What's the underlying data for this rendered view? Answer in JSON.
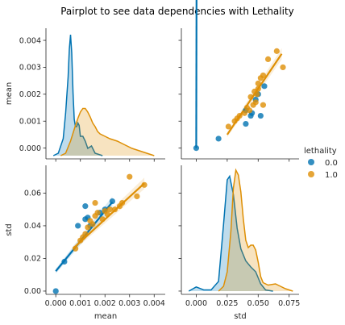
{
  "chart_data": {
    "type": "scatter",
    "title": "Pairplot to see data dependencies with Lethality",
    "variables": [
      "mean",
      "std"
    ],
    "hue": {
      "title": "lethality",
      "levels": [
        {
          "name": "0.0",
          "color": "#0173b2"
        },
        {
          "name": "1.0",
          "color": "#de8f05"
        }
      ]
    },
    "axes": {
      "mean": {
        "range": [
          -0.0004,
          0.00445
        ],
        "ticks": [
          0.0,
          0.001,
          0.002,
          0.003,
          0.004
        ],
        "tick_labels": [
          "0.000",
          "0.001",
          "0.002",
          "0.003",
          "0.004"
        ]
      },
      "mean_x": {
        "ticks": [
          0.0,
          0.001,
          0.002,
          0.003,
          0.004
        ],
        "tick_labels": [
          "0.000",
          "0.001",
          "0.002",
          "0.003",
          "0.004"
        ]
      },
      "std": {
        "range": [
          -0.002,
          0.077
        ],
        "ticks": [
          0.0,
          0.02,
          0.04,
          0.06
        ],
        "tick_labels": [
          "0.00",
          "0.02",
          "0.04",
          "0.06"
        ]
      },
      "std_x": {
        "range": [
          -0.012,
          0.083
        ],
        "ticks": [
          0.0,
          0.025,
          0.05,
          0.075
        ],
        "tick_labels": [
          "0.000",
          "0.025",
          "0.050",
          "0.075"
        ]
      }
    },
    "scatter_points": {
      "0.0": [
        {
          "mean": 0.0,
          "std": 0.0
        },
        {
          "mean": 0.00035,
          "std": 0.018
        },
        {
          "mean": 0.0009,
          "std": 0.04
        },
        {
          "mean": 0.0012,
          "std": 0.044
        },
        {
          "mean": 0.0012,
          "std": 0.052
        },
        {
          "mean": 0.0014,
          "std": 0.04
        },
        {
          "mean": 0.0018,
          "std": 0.048
        },
        {
          "mean": 0.002,
          "std": 0.05
        },
        {
          "mean": 0.0023,
          "std": 0.055
        },
        {
          "mean": 0.0013,
          "std": 0.045
        }
      ],
      "1.0": [
        {
          "mean": 0.0008,
          "std": 0.026
        },
        {
          "mean": 0.001,
          "std": 0.031
        },
        {
          "mean": 0.0012,
          "std": 0.035
        },
        {
          "mean": 0.0013,
          "std": 0.039
        },
        {
          "mean": 0.0014,
          "std": 0.043
        },
        {
          "mean": 0.0015,
          "std": 0.041
        },
        {
          "mean": 0.0016,
          "std": 0.046
        },
        {
          "mean": 0.0017,
          "std": 0.048
        },
        {
          "mean": 0.0019,
          "std": 0.044
        },
        {
          "mean": 0.002,
          "std": 0.049
        },
        {
          "mean": 0.0021,
          "std": 0.047
        },
        {
          "mean": 0.0022,
          "std": 0.05
        },
        {
          "mean": 0.0024,
          "std": 0.05
        },
        {
          "mean": 0.0026,
          "std": 0.052
        },
        {
          "mean": 0.0027,
          "std": 0.054
        },
        {
          "mean": 0.003,
          "std": 0.07
        },
        {
          "mean": 0.0033,
          "std": 0.058
        },
        {
          "mean": 0.0036,
          "std": 0.065
        },
        {
          "mean": 0.0016,
          "std": 0.054
        },
        {
          "mean": 0.0011,
          "std": 0.033
        }
      ]
    },
    "regression": {
      "0.0": {
        "mean_vs_std": {
          "x": [
            0.0,
            0.0023
          ],
          "y": [
            0.0,
            0.0535
          ]
        },
        "std_vs_mean": {
          "x": [
            0.0,
            0.0023
          ],
          "y": [
            0.0122,
            0.0545
          ]
        }
      },
      "1.0": {
        "mean_vs_std": {
          "x": [
            0.025,
            0.069
          ],
          "y": [
            0.0005,
            0.0035
          ]
        },
        "std_vs_mean": {
          "x": [
            0.0007,
            0.0036
          ],
          "y": [
            0.026,
            0.066
          ]
        }
      }
    },
    "kde": {
      "mean": {
        "0.0": {
          "x": [
            -0.0001,
            0.0001,
            0.0003,
            0.0004,
            0.0005,
            0.00055,
            0.0006,
            0.00065,
            0.0007,
            0.00075,
            0.0008,
            0.00085,
            0.0009,
            0.00095,
            0.001,
            0.0011,
            0.0012,
            0.0013,
            0.00145,
            0.0016,
            0.0019
          ],
          "y": [
            0,
            0.02,
            0.14,
            0.35,
            0.65,
            0.88,
            1.0,
            0.85,
            0.52,
            0.3,
            0.24,
            0.24,
            0.27,
            0.25,
            0.16,
            0.16,
            0.12,
            0.06,
            0.08,
            0.02,
            0
          ]
        },
        "1.0": {
          "x": [
            0.0002,
            0.0004,
            0.0006,
            0.0008,
            0.0009,
            0.001,
            0.0011,
            0.0012,
            0.0013,
            0.0014,
            0.0015,
            0.0016,
            0.0017,
            0.0018,
            0.002,
            0.0022,
            0.0025,
            0.0028,
            0.0031,
            0.0034,
            0.0037,
            0.004
          ],
          "y": [
            0,
            0.02,
            0.12,
            0.25,
            0.31,
            0.36,
            0.39,
            0.39,
            0.36,
            0.32,
            0.27,
            0.24,
            0.2,
            0.18,
            0.16,
            0.14,
            0.12,
            0.09,
            0.06,
            0.04,
            0.02,
            0
          ]
        }
      },
      "std": {
        "0.0": {
          "x": [
            -0.006,
            0.0,
            0.006,
            0.012,
            0.018,
            0.022,
            0.025,
            0.027,
            0.03,
            0.033,
            0.036,
            0.04,
            0.044,
            0.048,
            0.052,
            0.056,
            0.062
          ],
          "y": [
            0,
            0.035,
            0.01,
            0.01,
            0.08,
            0.55,
            0.92,
            0.95,
            0.8,
            0.52,
            0.35,
            0.25,
            0.2,
            0.16,
            0.06,
            0.01,
            0
          ]
        },
        "1.0": {
          "x": [
            0.018,
            0.022,
            0.025,
            0.028,
            0.03,
            0.032,
            0.034,
            0.036,
            0.038,
            0.04,
            0.042,
            0.044,
            0.046,
            0.048,
            0.05,
            0.052,
            0.054,
            0.058,
            0.064,
            0.068,
            0.072,
            0.078
          ],
          "y": [
            0,
            0.04,
            0.16,
            0.5,
            0.85,
            1.0,
            0.96,
            0.82,
            0.6,
            0.42,
            0.36,
            0.38,
            0.38,
            0.34,
            0.24,
            0.12,
            0.07,
            0.05,
            0.06,
            0.04,
            0.02,
            0
          ]
        }
      }
    },
    "legend_position": "right"
  }
}
